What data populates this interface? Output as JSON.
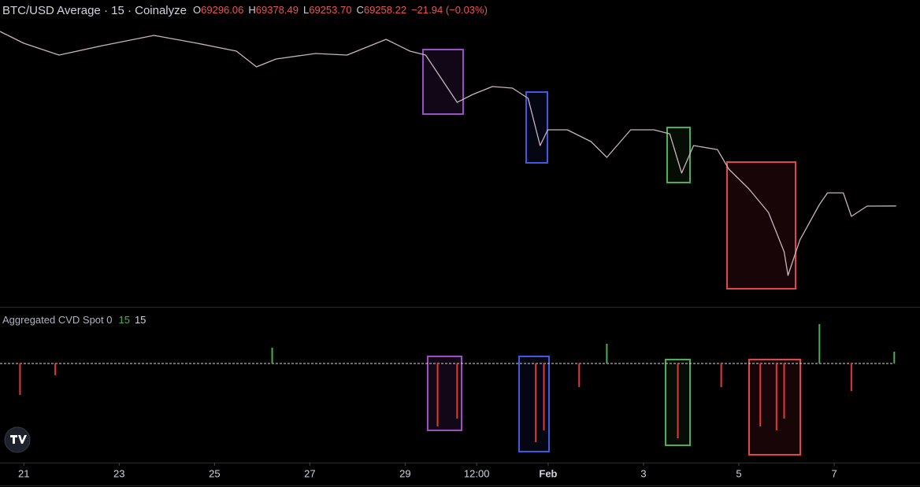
{
  "header": {
    "title": "BTC/USD Average · 15 · Coinalyze",
    "ohlc": [
      {
        "label": "O",
        "value": "69296.06"
      },
      {
        "label": "H",
        "value": "69378.49"
      },
      {
        "label": "L",
        "value": "69253.70"
      },
      {
        "label": "C",
        "value": "69258.22"
      }
    ],
    "change": "−21.94 (−0.03%)"
  },
  "indicator": {
    "name": "Aggregated CVD Spot 0",
    "param1": "15",
    "param2": "15"
  },
  "chart_data": [
    {
      "type": "line",
      "color": "#c9b3bd",
      "x": [
        -0.5,
        0,
        0.74,
        1.65,
        2.73,
        3.64,
        4.46,
        4.88,
        5.29,
        6.12,
        6.78,
        7.6,
        8.1,
        8.43,
        8.76,
        9.09,
        9.42,
        9.83,
        10.25,
        10.58,
        10.83,
        10.99,
        11.4,
        11.9,
        12.23,
        12.73,
        13.22,
        13.55,
        13.8,
        14.05,
        14.55,
        14.79,
        15.21,
        15.62,
        15.95,
        16.03,
        16.28,
        16.69,
        16.86,
        17.19,
        17.36,
        17.69,
        18.3
      ],
      "values": [
        91320,
        89830,
        88340,
        89530,
        90820,
        89830,
        88830,
        86840,
        87840,
        88530,
        88340,
        90330,
        88830,
        88340,
        85350,
        82360,
        83360,
        84360,
        84160,
        82860,
        76890,
        78880,
        78880,
        77390,
        75400,
        78880,
        78880,
        78380,
        73410,
        76890,
        76390,
        73910,
        71420,
        68440,
        63460,
        60480,
        64950,
        69430,
        70920,
        70920,
        67940,
        69230,
        69258
      ],
      "xlim": [
        -0.5,
        18.8
      ],
      "ylim": [
        56500,
        95300
      ],
      "xticks": [
        {
          "value": 0,
          "label": "21"
        },
        {
          "value": 2,
          "label": "23"
        },
        {
          "value": 4,
          "label": "25"
        },
        {
          "value": 6,
          "label": "27"
        },
        {
          "value": 8,
          "label": "29"
        },
        {
          "value": 9.5,
          "label": "12:00"
        },
        {
          "value": 11,
          "label": "Feb"
        },
        {
          "value": 13,
          "label": "3"
        },
        {
          "value": 15,
          "label": "5"
        },
        {
          "value": 17,
          "label": "7"
        }
      ]
    },
    {
      "type": "bar",
      "up_color": "#4caf50",
      "down_color": "#e53935",
      "x": [
        -0.08,
        0.66,
        5.21,
        8.68,
        9.09,
        10.74,
        10.91,
        11.65,
        12.23,
        13.72,
        14.63,
        15.45,
        15.79,
        15.95,
        16.69,
        17.36,
        18.26
      ],
      "values": [
        -40,
        -15,
        20,
        -80,
        -70,
        -100,
        -85,
        -30,
        25,
        -95,
        -30,
        -80,
        -85,
        -70,
        50,
        -35,
        15
      ],
      "xlim": [
        -0.5,
        18.8
      ],
      "ylim": [
        -126,
        72
      ]
    }
  ]
}
